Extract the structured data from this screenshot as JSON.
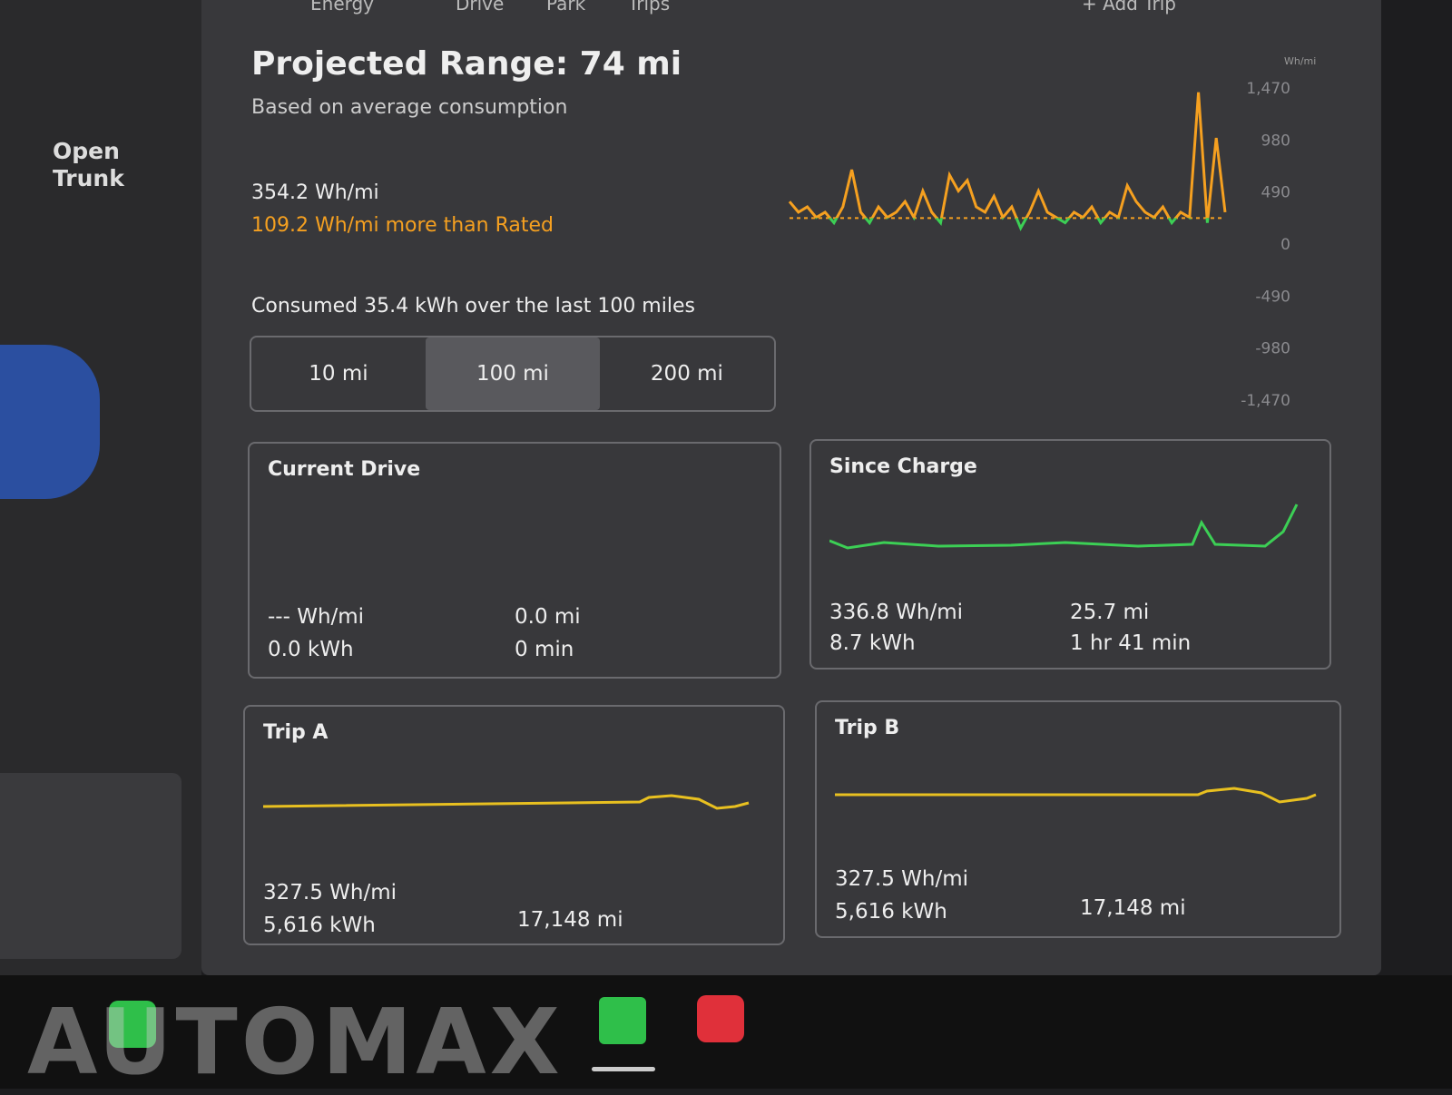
{
  "tabs": [
    "Energy",
    "Drive",
    "Park",
    "Trips"
  ],
  "add_trip": "+ Add Trip",
  "side": {
    "open_trunk": "Open Trunk"
  },
  "header": {
    "title": "Projected Range: 74 mi",
    "subtitle": "Based on average consumption"
  },
  "average": {
    "rate": "354.2 Wh/mi",
    "delta": "109.2 Wh/mi more than Rated"
  },
  "consumed": "Consumed 35.4 kWh over the last 100 miles",
  "range_buttons": [
    "10 mi",
    "100 mi",
    "200 mi"
  ],
  "chart_data": {
    "type": "line",
    "y_label": "Wh/mi",
    "color": "#f5a020",
    "below_color": "#3ccf55",
    "ylim": [
      -1470,
      1470
    ],
    "yticks": [
      {
        "value": 1470,
        "label": "1,470"
      },
      980,
      490,
      0,
      -490,
      -980,
      {
        "value": -1470,
        "label": "-1,470"
      }
    ],
    "rated_line": 245,
    "values": [
      400,
      300,
      350,
      250,
      300,
      200,
      350,
      700,
      300,
      200,
      350,
      250,
      300,
      400,
      250,
      500,
      300,
      200,
      650,
      500,
      600,
      350,
      300,
      450,
      250,
      350,
      150,
      300,
      500,
      300,
      250,
      200,
      300,
      250,
      350,
      200,
      300,
      250,
      550,
      400,
      300,
      250,
      350,
      200,
      300,
      250,
      1430,
      200,
      1000,
      300
    ]
  },
  "cards": [
    {
      "title": "Current Drive",
      "rate": "--- Wh/mi",
      "energy": "0.0 kWh",
      "distance": "0.0 mi",
      "time": "0 min"
    },
    {
      "title": "Since Charge",
      "rate": "336.8 Wh/mi",
      "energy": "8.7 kWh",
      "distance": "25.7 mi",
      "time": "1 hr 41 min"
    },
    {
      "title": "Trip A",
      "rate": "327.5 Wh/mi",
      "energy": "5,616 kWh",
      "distance": "17,148 mi"
    },
    {
      "title": "Trip B",
      "rate": "327.5 Wh/mi",
      "energy": "5,616 kWh",
      "distance": "17,148 mi"
    }
  ],
  "watermark": "AUTOMAX"
}
